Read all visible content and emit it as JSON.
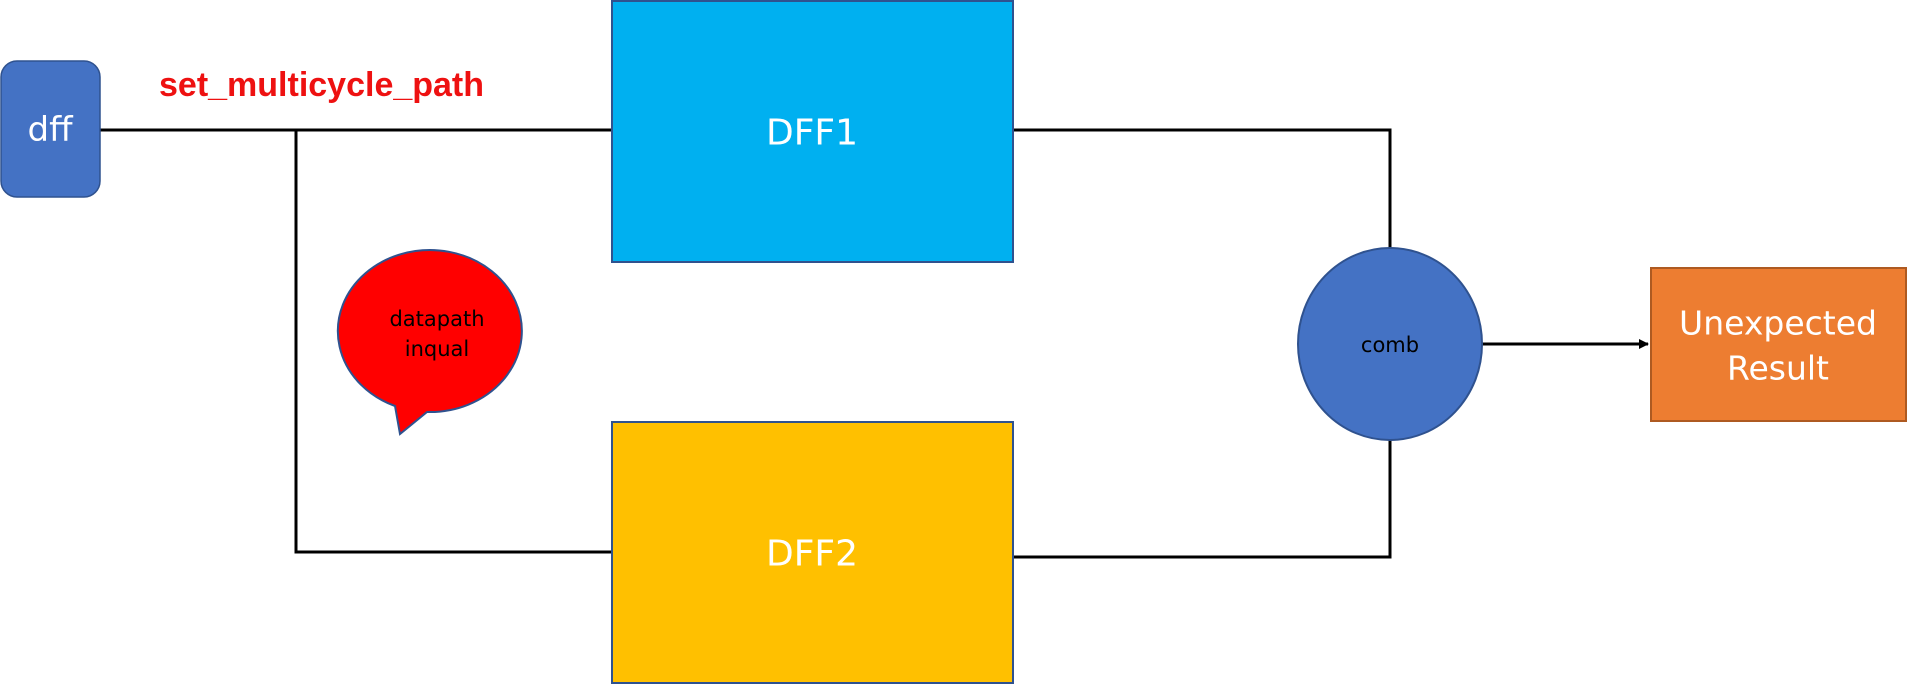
{
  "annotation": {
    "text": "set_multicycle_path",
    "color": "#ee1111"
  },
  "blocks": {
    "source": {
      "label": "dff",
      "color": "#4472c4"
    },
    "dff1": {
      "label": "DFF1",
      "color": "#00b0f0"
    },
    "dff2": {
      "label": "DFF2",
      "color": "#ffc000"
    },
    "comb": {
      "label": "comb",
      "color": "#4472c4"
    },
    "result": {
      "line1": "Unexpected",
      "line2": "Result",
      "color": "#ed7d31"
    }
  },
  "callout": {
    "line1": "datapath",
    "line2": "inqual",
    "color": "#ff0000"
  }
}
